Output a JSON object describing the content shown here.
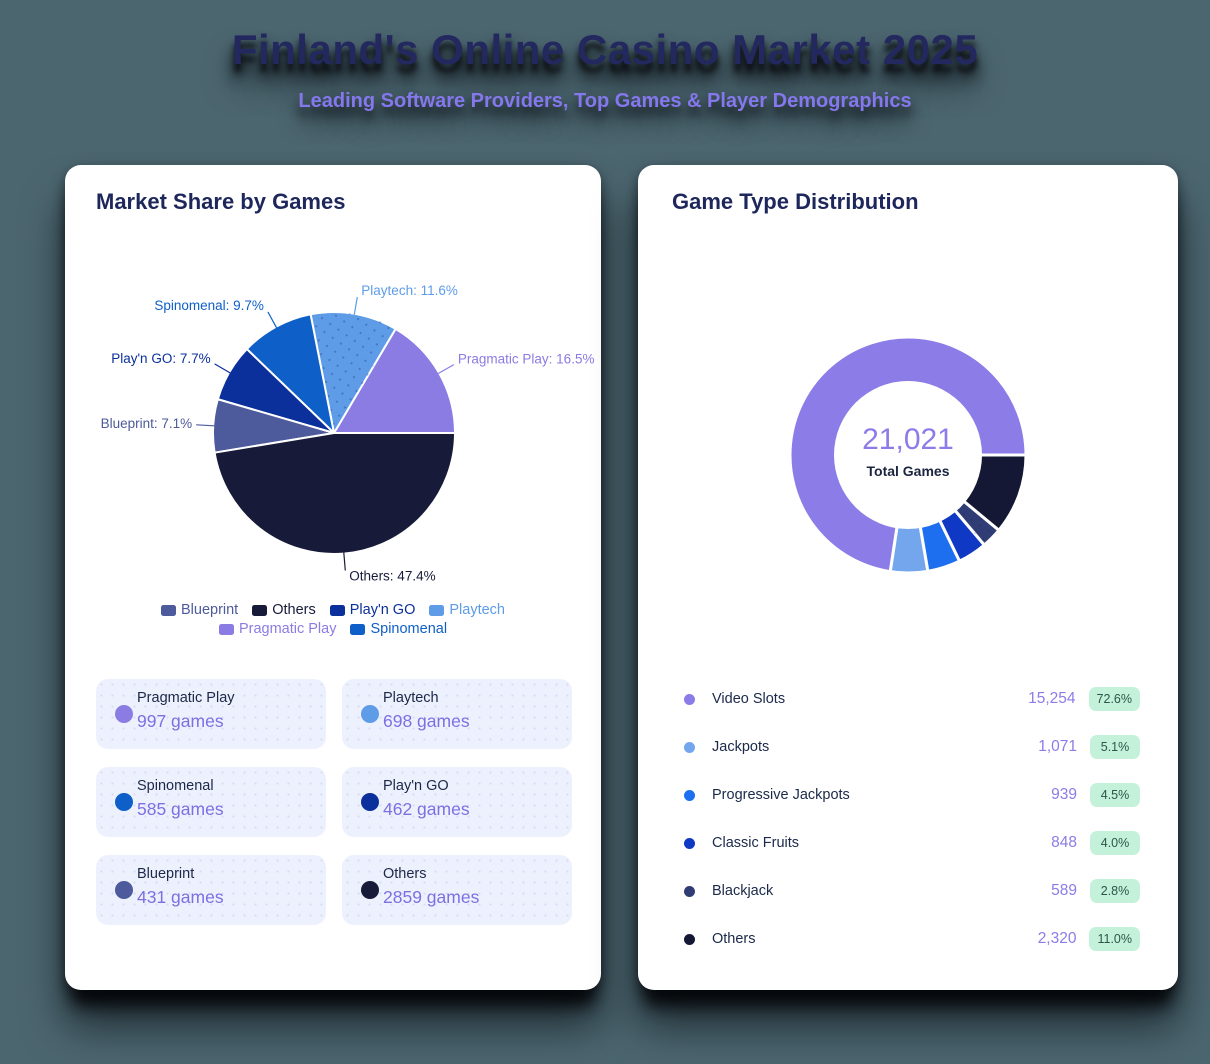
{
  "page": {
    "title": "Finland's Online Casino Market 2025",
    "subtitle": "Leading Software Providers, Top Games & Player Demographics",
    "background_color": "#4C6670",
    "title_color": "#23285E",
    "subtitle_color": "#8577EC"
  },
  "chart_data": [
    {
      "type": "pie",
      "title": "Market Share by Games",
      "categories": [
        "Pragmatic Play",
        "Playtech",
        "Spinomenal",
        "Play'n GO",
        "Blueprint",
        "Others"
      ],
      "values": [
        16.5,
        11.6,
        9.7,
        7.7,
        7.1,
        47.4
      ],
      "value_unit": "%",
      "slice_labels": [
        "Pragmatic Play: 16.5%",
        "Playtech: 11.6%",
        "Spinomenal: 9.7%",
        "Play'n GO: 7.7%",
        "Blueprint: 7.1%",
        "Others: 47.4%"
      ],
      "colors": [
        "#8B7CE3",
        "#5E9CE8",
        "#0F5FC8",
        "#0B2F9B",
        "#4D5A9B",
        "#171B39"
      ],
      "dotted_slices": [
        "Playtech"
      ],
      "start_angle": 0,
      "direction": "counterclockwise",
      "legend_position": "bottom",
      "legend_rows": [
        [
          "Blueprint",
          "Others",
          "Play'n GO",
          "Playtech"
        ],
        [
          "Pragmatic Play",
          "Spinomenal"
        ]
      ]
    },
    {
      "type": "donut",
      "title": "Game Type Distribution",
      "categories": [
        "Video Slots",
        "Jackpots",
        "Progressive Jackpots",
        "Classic Fruits",
        "Blackjack",
        "Others"
      ],
      "values": [
        72.6,
        5.1,
        4.5,
        4.0,
        2.8,
        11.0
      ],
      "value_unit": "%",
      "counts": [
        "15,254",
        "1,071",
        "939",
        "848",
        "589",
        "2,320"
      ],
      "colors": [
        "#8B7CE8",
        "#74A6EE",
        "#1D6FEF",
        "#0F38C4",
        "#2F3D74",
        "#141834"
      ],
      "dotted_slices": [
        "Blackjack"
      ],
      "start_angle": 0,
      "direction": "counterclockwise",
      "center": {
        "value": "21,021",
        "label": "Total Games"
      }
    }
  ],
  "left_card": {
    "stats": [
      {
        "name": "Pragmatic Play",
        "value": "997 games",
        "color": "#8B7CE3"
      },
      {
        "name": "Playtech",
        "value": "698 games",
        "color": "#5E9CE8"
      },
      {
        "name": "Spinomenal",
        "value": "585 games",
        "color": "#0F5FC8"
      },
      {
        "name": "Play'n GO",
        "value": "462 games",
        "color": "#0B2F9B"
      },
      {
        "name": "Blueprint",
        "value": "431 games",
        "color": "#4D5A9B"
      },
      {
        "name": "Others",
        "value": "2859 games",
        "color": "#171B39"
      }
    ],
    "value_color": "#7D6FE2"
  },
  "right_card": {
    "rows": [
      {
        "label": "Video Slots",
        "count": "15,254",
        "percent": "72.6%",
        "color": "#8B7CE8"
      },
      {
        "label": "Jackpots",
        "count": "1,071",
        "percent": "5.1%",
        "color": "#74A6EE"
      },
      {
        "label": "Progressive Jackpots",
        "count": "939",
        "percent": "4.5%",
        "color": "#1D6FEF"
      },
      {
        "label": "Classic Fruits",
        "count": "848",
        "percent": "4.0%",
        "color": "#0F38C4"
      },
      {
        "label": "Blackjack",
        "count": "589",
        "percent": "2.8%",
        "color": "#2F3D74"
      },
      {
        "label": "Others",
        "count": "2,320",
        "percent": "11.0%",
        "color": "#141834"
      }
    ],
    "badge": {
      "bg": "#C4F1DA",
      "text_color": "#2B564B"
    },
    "count_color": "#8B7CE8"
  }
}
